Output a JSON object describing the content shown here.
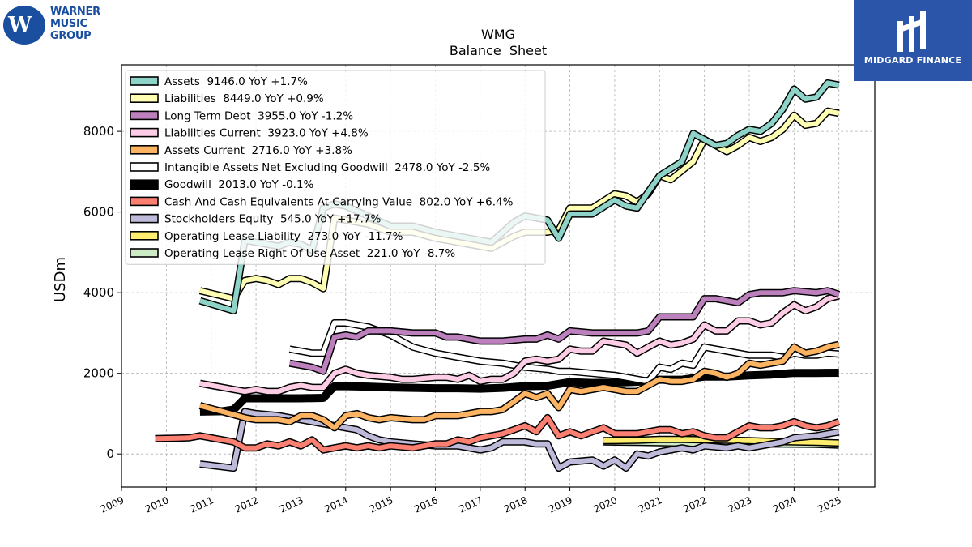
{
  "brand": {
    "left_logo_lines": [
      "WARNER",
      "MUSIC",
      "GROUP"
    ],
    "right_logo_text": "MIDGARD FINANCE"
  },
  "chart_data": {
    "type": "line",
    "title": "WMG",
    "subtitle": "Balance  Sheet",
    "xlabel": "",
    "ylabel": "USDm",
    "xlim": [
      2009.0,
      2025.8
    ],
    "ylim": [
      -820,
      9650
    ],
    "xticks": [
      2009,
      2010,
      2011,
      2012,
      2013,
      2014,
      2015,
      2016,
      2017,
      2018,
      2019,
      2020,
      2021,
      2022,
      2023,
      2024,
      2025
    ],
    "yticks": [
      0,
      2000,
      4000,
      6000,
      8000
    ],
    "grid": true,
    "legend_position": "top-left",
    "series": [
      {
        "name": "Assets  9146.0 YoY +1.7%",
        "color": "#8dd3c7",
        "width": 6,
        "x": [
          2010.75,
          2011.5,
          2011.75,
          2012.0,
          2012.5,
          2012.75,
          2013.0,
          2013.25,
          2013.5,
          2013.75,
          2014.0,
          2014.5,
          2015.0,
          2015.5,
          2016.0,
          2016.5,
          2017.0,
          2017.25,
          2017.75,
          2018.0,
          2018.5,
          2018.75,
          2019.0,
          2019.5,
          2020.0,
          2020.25,
          2020.5,
          2020.75,
          2021.0,
          2021.5,
          2021.75,
          2022.0,
          2022.25,
          2022.5,
          2022.75,
          2023.0,
          2023.25,
          2023.5,
          2023.75,
          2024.0,
          2024.25,
          2024.5,
          2024.75,
          2025.0
        ],
        "y": [
          3800,
          3550,
          5300,
          5250,
          5150,
          5250,
          5200,
          5050,
          6100,
          6200,
          6150,
          5900,
          5650,
          5650,
          5500,
          5400,
          5300,
          5250,
          5750,
          5900,
          5800,
          5350,
          5950,
          5950,
          6300,
          6150,
          6100,
          6500,
          6900,
          7250,
          7950,
          7800,
          7650,
          7700,
          7900,
          8050,
          8000,
          8200,
          8550,
          9050,
          8800,
          8850,
          9200,
          9146
        ]
      },
      {
        "name": "Liabilities  8449.0 YoY +0.9%",
        "color": "#ffffb3",
        "width": 6,
        "x": [
          2010.75,
          2011.5,
          2011.75,
          2012.0,
          2012.25,
          2012.5,
          2012.75,
          2013.0,
          2013.25,
          2013.5,
          2013.75,
          2014.0,
          2014.5,
          2015.0,
          2015.5,
          2016.0,
          2016.5,
          2017.0,
          2017.25,
          2017.75,
          2018.0,
          2018.5,
          2018.75,
          2019.0,
          2019.5,
          2020.0,
          2020.25,
          2020.5,
          2020.75,
          2021.0,
          2021.25,
          2021.75,
          2022.0,
          2022.25,
          2022.5,
          2022.75,
          2023.0,
          2023.25,
          2023.5,
          2023.75,
          2024.0,
          2024.25,
          2024.5,
          2024.75,
          2025.0
        ],
        "y": [
          4050,
          3850,
          4300,
          4350,
          4300,
          4200,
          4350,
          4350,
          4250,
          4100,
          5850,
          5800,
          5700,
          5500,
          5500,
          5350,
          5250,
          5150,
          5100,
          5400,
          5500,
          5500,
          5550,
          6100,
          6100,
          6450,
          6400,
          6250,
          6450,
          6900,
          6800,
          7250,
          7800,
          7650,
          7500,
          7650,
          7850,
          7750,
          7850,
          8050,
          8400,
          8150,
          8200,
          8500,
          8449
        ]
      },
      {
        "name": "Long Term Debt  3955.0 YoY -1.2%",
        "color": "#bc80bd",
        "width": 6,
        "x": [
          2012.75,
          2013.0,
          2013.25,
          2013.5,
          2013.75,
          2014.0,
          2014.25,
          2014.5,
          2015.0,
          2015.5,
          2016.0,
          2016.25,
          2016.5,
          2017.0,
          2017.5,
          2018.0,
          2018.25,
          2018.5,
          2018.75,
          2019.0,
          2019.5,
          2020.0,
          2020.5,
          2020.75,
          2021.0,
          2021.5,
          2021.75,
          2022.0,
          2022.25,
          2022.5,
          2022.75,
          2023.0,
          2023.25,
          2023.5,
          2023.75,
          2024.0,
          2024.5,
          2024.75,
          2025.0
        ],
        "y": [
          2250,
          2200,
          2150,
          2050,
          2900,
          2950,
          2900,
          3050,
          3050,
          3000,
          3000,
          2900,
          2900,
          2800,
          2800,
          2850,
          2850,
          2950,
          2850,
          3050,
          3000,
          3000,
          3000,
          3050,
          3400,
          3400,
          3400,
          3850,
          3850,
          3800,
          3750,
          3950,
          4000,
          4000,
          4000,
          4050,
          4000,
          4050,
          3955
        ]
      },
      {
        "name": "Liabilities Current  3923.0 YoY +4.8%",
        "color": "#fccde5",
        "width": 6,
        "x": [
          2010.75,
          2011.25,
          2011.75,
          2012.0,
          2012.25,
          2012.5,
          2012.75,
          2013.0,
          2013.25,
          2013.5,
          2013.75,
          2014.0,
          2014.25,
          2014.5,
          2015.0,
          2015.25,
          2015.5,
          2016.0,
          2016.25,
          2016.5,
          2016.75,
          2017.0,
          2017.25,
          2017.5,
          2017.75,
          2018.0,
          2018.25,
          2018.5,
          2018.75,
          2019.0,
          2019.25,
          2019.5,
          2019.75,
          2020.0,
          2020.25,
          2020.5,
          2020.75,
          2021.0,
          2021.25,
          2021.5,
          2021.75,
          2022.0,
          2022.25,
          2022.5,
          2022.75,
          2023.0,
          2023.25,
          2023.5,
          2023.75,
          2024.0,
          2024.25,
          2024.5,
          2024.75,
          2025.0
        ],
        "y": [
          1750,
          1650,
          1550,
          1600,
          1550,
          1550,
          1650,
          1700,
          1650,
          1650,
          2000,
          2100,
          2000,
          1950,
          1900,
          1850,
          1850,
          1900,
          1900,
          1850,
          1950,
          1800,
          1850,
          1850,
          2000,
          2300,
          2350,
          2300,
          2350,
          2600,
          2550,
          2550,
          2800,
          2750,
          2700,
          2500,
          2650,
          2800,
          2700,
          2750,
          2850,
          3200,
          3050,
          3050,
          3300,
          3300,
          3200,
          3250,
          3500,
          3700,
          3550,
          3650,
          3850,
          3923
        ]
      },
      {
        "name": "Assets Current  2716.0 YoY +3.8%",
        "color": "#fdb462",
        "width": 6,
        "x": [
          2010.75,
          2011.25,
          2011.75,
          2012.0,
          2012.5,
          2012.75,
          2013.0,
          2013.25,
          2013.5,
          2013.75,
          2014.0,
          2014.25,
          2014.5,
          2014.75,
          2015.0,
          2015.5,
          2015.75,
          2016.0,
          2016.25,
          2016.5,
          2016.75,
          2017.0,
          2017.25,
          2017.5,
          2017.75,
          2018.0,
          2018.25,
          2018.5,
          2018.75,
          2019.0,
          2019.25,
          2019.5,
          2019.75,
          2020.0,
          2020.25,
          2020.5,
          2020.75,
          2021.0,
          2021.25,
          2021.5,
          2021.75,
          2022.0,
          2022.25,
          2022.5,
          2022.75,
          2023.0,
          2023.25,
          2023.5,
          2023.75,
          2024.0,
          2024.25,
          2024.5,
          2024.75,
          2025.0
        ],
        "y": [
          1200,
          1050,
          900,
          850,
          850,
          800,
          950,
          950,
          850,
          650,
          950,
          1000,
          900,
          850,
          900,
          850,
          850,
          950,
          950,
          950,
          1000,
          1050,
          1050,
          1100,
          1300,
          1500,
          1400,
          1500,
          1150,
          1600,
          1550,
          1600,
          1650,
          1600,
          1550,
          1550,
          1700,
          1850,
          1800,
          1800,
          1850,
          2050,
          2000,
          1900,
          2000,
          2250,
          2200,
          2250,
          2300,
          2650,
          2500,
          2550,
          2650,
          2716
        ]
      },
      {
        "name": "Intangible Assets Net Excluding Goodwill  2478.0 YoY -2.5%",
        "color": "#ffffff",
        "width": 6,
        "x": [
          2012.75,
          2013.0,
          2013.25,
          2013.5,
          2013.75,
          2014.0,
          2014.25,
          2014.5,
          2014.75,
          2015.0,
          2015.25,
          2015.5,
          2016.0,
          2016.5,
          2017.0,
          2017.5,
          2017.75,
          2018.0,
          2018.5,
          2018.75,
          2019.0,
          2019.5,
          2020.0,
          2020.25,
          2020.5,
          2020.75,
          2021.0,
          2021.25,
          2021.5,
          2021.75,
          2022.0,
          2022.25,
          2022.5,
          2022.75,
          2023.0,
          2023.25,
          2023.5,
          2023.75,
          2024.0,
          2024.25,
          2024.5,
          2024.75,
          2025.0
        ],
        "y": [
          2600,
          2550,
          2500,
          2500,
          3250,
          3250,
          3200,
          3150,
          3050,
          2950,
          2800,
          2650,
          2500,
          2400,
          2300,
          2250,
          2200,
          2150,
          2100,
          2050,
          2050,
          2000,
          1950,
          1900,
          1850,
          1800,
          2150,
          2100,
          2250,
          2200,
          2650,
          2600,
          2550,
          2500,
          2450,
          2450,
          2450,
          2400,
          2500,
          2450,
          2450,
          2500,
          2478
        ]
      },
      {
        "name": "Goodwill  2013.0 YoY -0.1%",
        "color": "#000000",
        "width": 10,
        "x": [
          2010.75,
          2011.25,
          2011.5,
          2011.75,
          2012.0,
          2012.5,
          2013.0,
          2013.5,
          2013.75,
          2014.0,
          2014.5,
          2015.0,
          2015.5,
          2016.0,
          2016.5,
          2017.0,
          2017.5,
          2018.0,
          2018.5,
          2019.0,
          2019.5,
          2020.0,
          2020.5,
          2021.0,
          2021.5,
          2022.0,
          2022.5,
          2023.0,
          2023.5,
          2024.0,
          2024.5,
          2025.0
        ],
        "y": [
          1050,
          1060,
          1100,
          1380,
          1380,
          1380,
          1380,
          1390,
          1680,
          1680,
          1670,
          1650,
          1640,
          1630,
          1630,
          1620,
          1640,
          1680,
          1690,
          1780,
          1760,
          1770,
          1790,
          1840,
          1840,
          1920,
          1920,
          1950,
          1970,
          2010,
          2010,
          2013
        ]
      },
      {
        "name": "Cash And Cash Equivalents At Carrying Value  802.0 YoY +6.4%",
        "color": "#fb8072",
        "width": 6,
        "x": [
          2009.75,
          2010.25,
          2010.5,
          2010.75,
          2011.0,
          2011.25,
          2011.5,
          2011.75,
          2012.0,
          2012.25,
          2012.5,
          2012.75,
          2013.0,
          2013.25,
          2013.5,
          2013.75,
          2014.0,
          2014.25,
          2014.5,
          2014.75,
          2015.0,
          2015.5,
          2015.75,
          2016.0,
          2016.25,
          2016.5,
          2016.75,
          2017.0,
          2017.25,
          2017.5,
          2017.75,
          2018.0,
          2018.25,
          2018.5,
          2018.75,
          2019.0,
          2019.25,
          2019.5,
          2019.75,
          2020.0,
          2020.25,
          2020.5,
          2020.75,
          2021.0,
          2021.25,
          2021.5,
          2021.75,
          2022.0,
          2022.25,
          2022.5,
          2022.75,
          2023.0,
          2023.25,
          2023.5,
          2023.75,
          2024.0,
          2024.25,
          2024.5,
          2024.75,
          2025.0
        ],
        "y": [
          380,
          390,
          400,
          450,
          400,
          350,
          300,
          150,
          150,
          250,
          200,
          300,
          200,
          350,
          100,
          150,
          200,
          150,
          200,
          150,
          200,
          150,
          200,
          250,
          250,
          350,
          300,
          400,
          450,
          500,
          600,
          700,
          550,
          900,
          450,
          550,
          450,
          550,
          650,
          500,
          500,
          500,
          550,
          600,
          600,
          500,
          550,
          450,
          400,
          400,
          550,
          700,
          650,
          650,
          700,
          800,
          700,
          650,
          700,
          802
        ]
      },
      {
        "name": "Stockholders Equity  545.0 YoY +17.7%",
        "color": "#bebada",
        "width": 6,
        "x": [
          2010.75,
          2011.5,
          2011.75,
          2012.0,
          2012.5,
          2013.0,
          2013.5,
          2014.0,
          2014.25,
          2014.5,
          2014.75,
          2015.0,
          2015.5,
          2016.0,
          2016.5,
          2016.75,
          2017.0,
          2017.25,
          2017.5,
          2018.0,
          2018.25,
          2018.5,
          2018.75,
          2019.0,
          2019.5,
          2019.75,
          2020.0,
          2020.25,
          2020.5,
          2020.75,
          2021.0,
          2021.25,
          2021.5,
          2021.75,
          2022.0,
          2022.5,
          2022.75,
          2023.0,
          2023.5,
          2023.75,
          2024.0,
          2024.5,
          2024.75,
          2025.0
        ],
        "y": [
          -250,
          -350,
          1050,
          1000,
          950,
          850,
          750,
          650,
          600,
          450,
          350,
          300,
          250,
          200,
          200,
          150,
          100,
          150,
          300,
          300,
          250,
          250,
          -350,
          -200,
          -150,
          -300,
          -150,
          -350,
          0,
          -50,
          50,
          100,
          150,
          100,
          200,
          150,
          200,
          150,
          250,
          300,
          400,
          450,
          500,
          545
        ]
      },
      {
        "name": "Operating Lease Liability  273.0 YoY -11.7%",
        "color": "#ffed6f",
        "width": 6,
        "x": [
          2019.75,
          2020.5,
          2021.0,
          2021.5,
          2022.0,
          2022.5,
          2023.0,
          2023.5,
          2024.0,
          2024.5,
          2025.0
        ],
        "y": [
          330,
          340,
          360,
          360,
          350,
          340,
          330,
          310,
          300,
          290,
          273
        ]
      },
      {
        "name": "Operating Lease Right Of Use Asset  221.0 YoY -8.7%",
        "color": "#ccebc5",
        "width": 6,
        "x": [
          2019.75,
          2020.5,
          2021.0,
          2021.5,
          2022.0,
          2022.5,
          2023.0,
          2023.5,
          2024.0,
          2024.5,
          2025.0
        ],
        "y": [
          300,
          290,
          280,
          270,
          260,
          250,
          240,
          250,
          245,
          240,
          221
        ]
      }
    ]
  }
}
